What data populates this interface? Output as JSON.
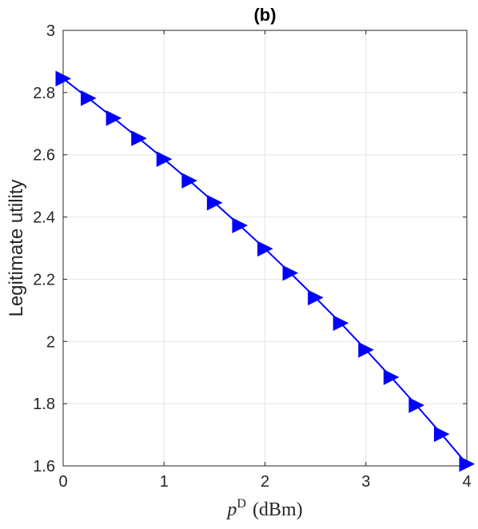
{
  "chart_data": {
    "type": "line",
    "title": "(b)",
    "ylabel": "Legitimate utility",
    "xlabel": {
      "variable": "p",
      "superscript": "D",
      "unit": "(dBm)"
    },
    "xlim": [
      0,
      4
    ],
    "ylim": [
      1.6,
      3
    ],
    "xticks": [
      0,
      1,
      2,
      3,
      4
    ],
    "xtick_labels": [
      "0",
      "1",
      "2",
      "3",
      "4"
    ],
    "yticks": [
      1.6,
      1.8,
      2,
      2.2,
      2.4,
      2.6,
      2.8,
      3
    ],
    "ytick_labels": [
      "1.6",
      "1.8",
      "2",
      "2.2",
      "2.4",
      "2.6",
      "2.8",
      "3"
    ],
    "grid": true,
    "series": [
      {
        "color": "#0000ff",
        "marker": "triangle-right",
        "x": [
          0,
          0.25,
          0.5,
          0.75,
          1,
          1.25,
          1.5,
          1.75,
          2,
          2.25,
          2.5,
          2.75,
          3,
          3.25,
          3.5,
          3.75,
          4
        ],
        "y": [
          2.845,
          2.782,
          2.718,
          2.653,
          2.586,
          2.517,
          2.446,
          2.373,
          2.298,
          2.22,
          2.141,
          2.059,
          1.973,
          1.885,
          1.795,
          1.702,
          1.606
        ]
      }
    ]
  }
}
